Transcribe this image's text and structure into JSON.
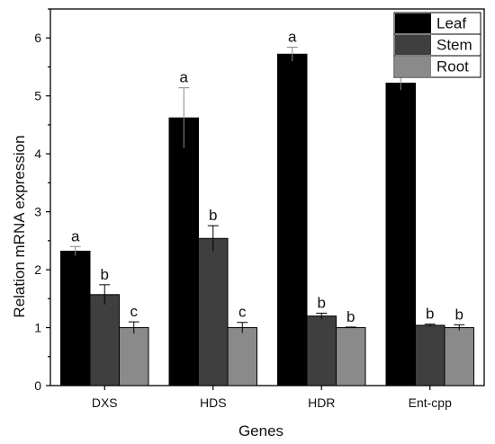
{
  "chart_data": {
    "type": "bar",
    "title": "",
    "xlabel": "Genes",
    "ylabel": "Relation mRNA expression",
    "categories": [
      "DXS",
      "HDS",
      "HDR",
      "Ent-cpp"
    ],
    "ylim": [
      0,
      6.5
    ],
    "yticks": [
      0,
      1,
      2,
      3,
      4,
      5,
      6
    ],
    "grid": false,
    "legend_position": "top-right",
    "series": [
      {
        "name": "Leaf",
        "color": "#000000",
        "values": [
          2.32,
          4.62,
          5.72,
          5.22
        ],
        "errors": [
          0.08,
          0.52,
          0.12,
          0.12
        ],
        "labels": [
          "a",
          "a",
          "a",
          "a"
        ]
      },
      {
        "name": "Stem",
        "color": "#3f3f3f",
        "values": [
          1.57,
          2.54,
          1.2,
          1.04
        ],
        "errors": [
          0.17,
          0.22,
          0.05,
          0.02
        ],
        "labels": [
          "b",
          "b",
          "b",
          "b"
        ]
      },
      {
        "name": "Root",
        "color": "#8a8a8a",
        "values": [
          1.0,
          1.0,
          1.0,
          1.0
        ],
        "errors": [
          0.1,
          0.09,
          0.01,
          0.05
        ],
        "labels": [
          "c",
          "c",
          "b",
          "b"
        ]
      }
    ]
  }
}
